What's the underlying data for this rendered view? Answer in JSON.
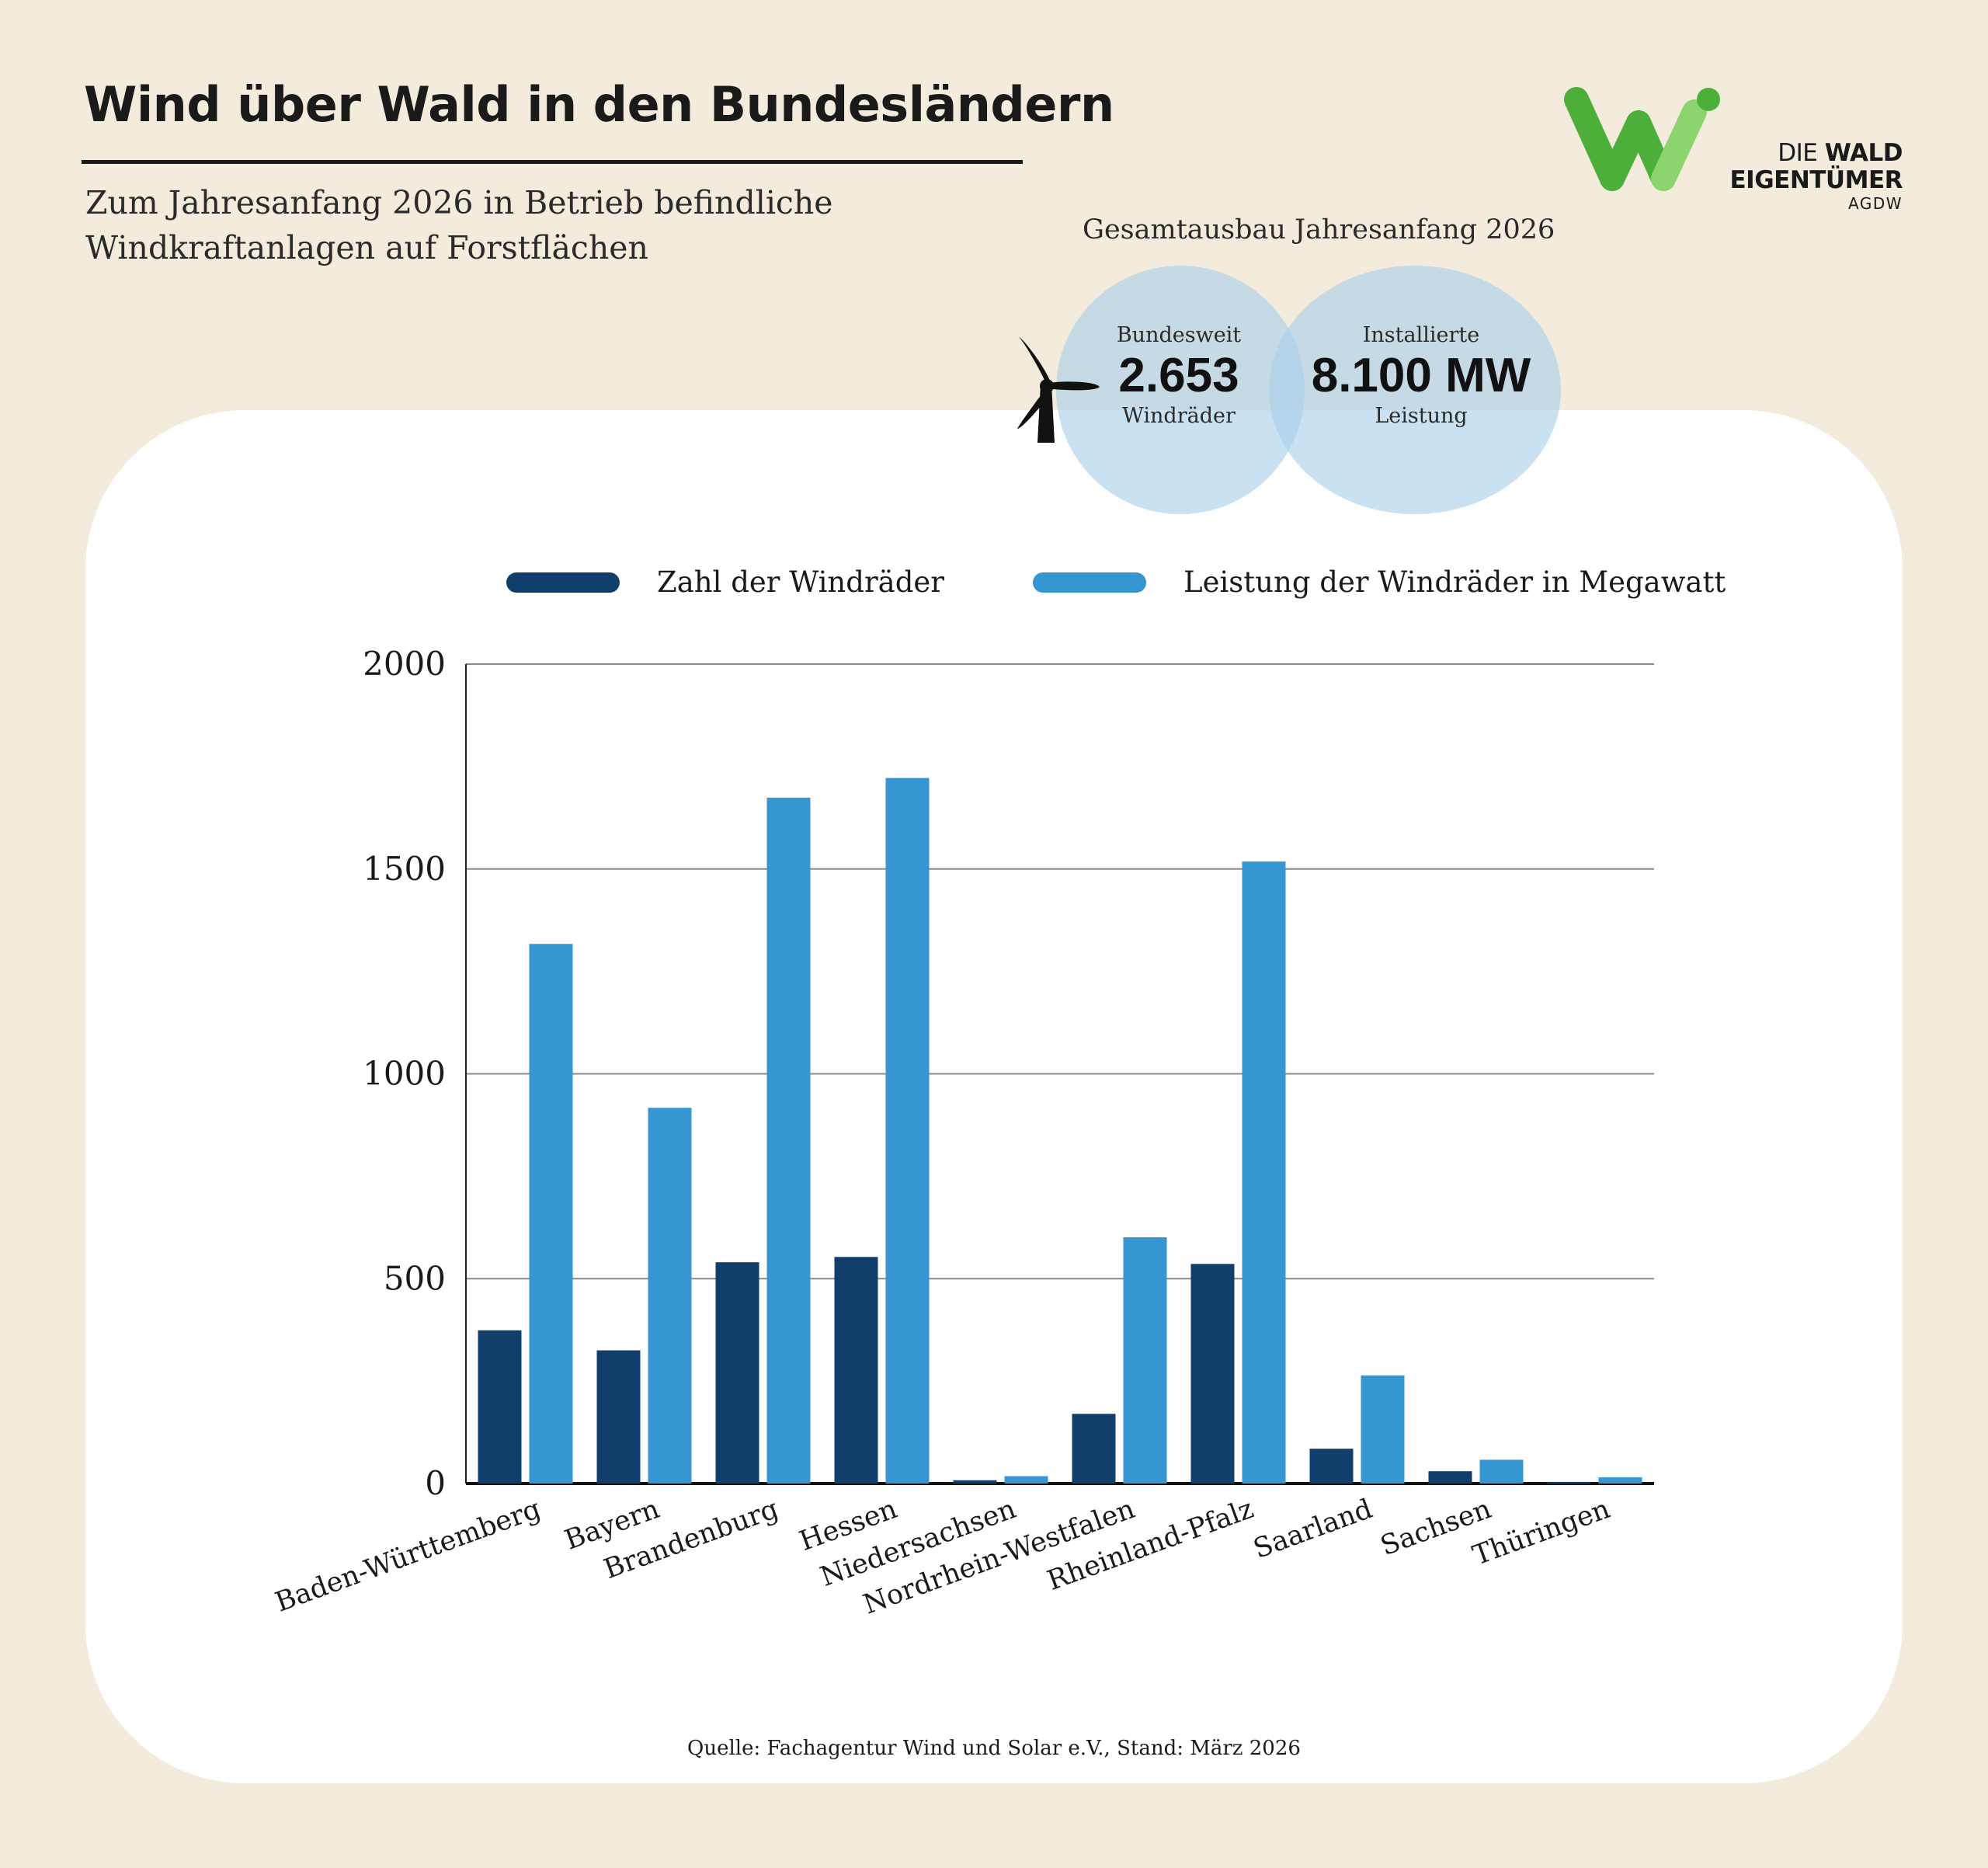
{
  "title": "Wind über Wald in den Bundesländern",
  "subtitle_lines": [
    "Zum Jahresanfang 2026 in Betrieb befindliche",
    "Windkraftanlagen auf Forstflächen"
  ],
  "logo": {
    "line1_regular": "DIE",
    "line1_bold": "WALD",
    "line2": "EIGENTÜMER",
    "line3": "AGDW",
    "colors": {
      "green": "#4caf3a",
      "green_light": "#8cd46e"
    }
  },
  "summary": {
    "header": "Gesamtausbau Jahresanfang 2026",
    "left": {
      "top": "Bundesweit",
      "value": "2.653",
      "bottom": "Windräder"
    },
    "right": {
      "top": "Installierte",
      "value": "8.100 MW",
      "bottom": "Leistung"
    },
    "icon": "wind-turbine-icon",
    "circle_color": "#a9cfea"
  },
  "colors": {
    "background": "#f3ecdc",
    "card": "#ffffff",
    "series_dark": "#123e6b",
    "series_light": "#3596d2"
  },
  "chart_data": {
    "type": "bar",
    "categories": [
      "Baden-Württemberg",
      "Bayern",
      "Brandenburg",
      "Hessen",
      "Niedersachsen",
      "Nordrhein-Westfalen",
      "Rheinland-Pfalz",
      "Saarland",
      "Sachsen",
      "Thüringen"
    ],
    "series": [
      {
        "name": "Zahl der Windräder",
        "color": "#123e6b",
        "values": [
          374,
          325,
          540,
          553,
          8,
          170,
          536,
          85,
          30,
          4
        ]
      },
      {
        "name": "Leistung der Windräder in Megawatt",
        "color": "#3596d2",
        "values": [
          1317,
          917,
          1674,
          1722,
          18,
          601,
          1518,
          264,
          58,
          15
        ]
      }
    ],
    "ylim": [
      0,
      2000
    ],
    "yticks": [
      0,
      500,
      1000,
      1500,
      2000
    ],
    "grid": true,
    "legend_position": "top"
  },
  "source": "Quelle: Fachagentur Wind und Solar e.V., Stand: März 2026"
}
